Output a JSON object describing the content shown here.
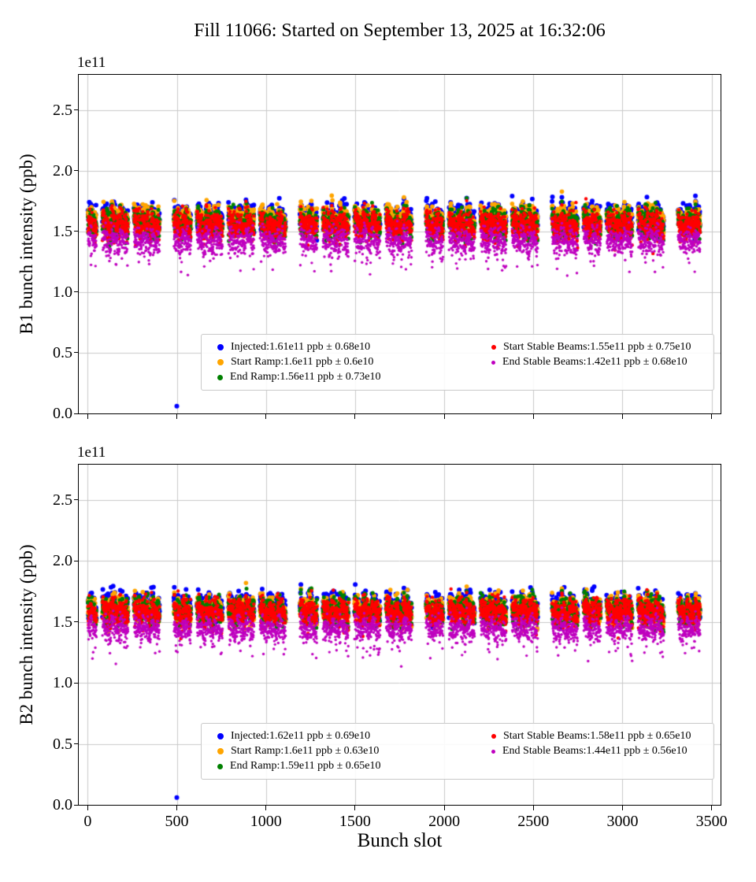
{
  "title": "Fill 11066: Started on September 13, 2025 at 16:32:06",
  "xlabel": "Bunch slot",
  "chart_data": [
    {
      "type": "scatter",
      "beam": "B1",
      "ylabel": "B1 bunch intensity (ppb)",
      "xlabel": "",
      "offset_label": "1e11",
      "grid": true,
      "legend_position": "lower center",
      "xlim": [
        -50,
        3550
      ],
      "ylim_e11": [
        0,
        2.79
      ],
      "xtick_values": [
        0,
        500,
        1000,
        1500,
        2000,
        2500,
        3000,
        3500
      ],
      "xtick_labels": [
        "0",
        "500",
        "1000",
        "1500",
        "2000",
        "2500",
        "3000",
        "3500"
      ],
      "ytick_values": [
        0,
        0.5,
        1.0,
        1.5,
        2.0,
        2.5
      ],
      "ytick_labels": [
        "0.0",
        "0.5",
        "1.0",
        "1.5",
        "2.0",
        "2.5"
      ],
      "series": [
        {
          "name": "Injected",
          "label": "Injected:1.61e11 ppb ± 0.68e10",
          "color": "#0000ff",
          "mean_e11": 1.61,
          "std_e10": 0.68,
          "marker_px": 3.0
        },
        {
          "name": "Start Ramp",
          "label": "Start Ramp:1.6e11 ppb ± 0.6e10",
          "color": "#ffa500",
          "mean_e11": 1.6,
          "std_e10": 0.6,
          "marker_px": 2.8
        },
        {
          "name": "End Ramp",
          "label": "End Ramp:1.56e11 ppb ± 0.73e10",
          "color": "#008000",
          "mean_e11": 1.56,
          "std_e10": 0.73,
          "marker_px": 2.5
        },
        {
          "name": "Start Stable Beams",
          "label": "Start Stable Beams:1.55e11 ppb ± 0.75e10",
          "color": "#ff0000",
          "mean_e11": 1.55,
          "std_e10": 0.75,
          "marker_px": 2.2
        },
        {
          "name": "End Stable Beams",
          "label": "End Stable Beams:1.42e11 ppb ± 0.68e10",
          "color": "#bf00bf",
          "mean_e11": 1.42,
          "std_e10": 0.68,
          "marker_px": 1.7
        }
      ],
      "outlier": {
        "x": 500,
        "y_e11": 0.06
      }
    },
    {
      "type": "scatter",
      "beam": "B2",
      "ylabel": "B2 bunch intensity (ppb)",
      "xlabel": "Bunch slot",
      "offset_label": "1e11",
      "grid": true,
      "legend_position": "lower center",
      "xlim": [
        -50,
        3550
      ],
      "ylim_e11": [
        0,
        2.79
      ],
      "xtick_values": [
        0,
        500,
        1000,
        1500,
        2000,
        2500,
        3000,
        3500
      ],
      "xtick_labels": [
        "0",
        "500",
        "1000",
        "1500",
        "2000",
        "2500",
        "3000",
        "3500"
      ],
      "ytick_values": [
        0,
        0.5,
        1.0,
        1.5,
        2.0,
        2.5
      ],
      "ytick_labels": [
        "0.0",
        "0.5",
        "1.0",
        "1.5",
        "2.0",
        "2.5"
      ],
      "series": [
        {
          "name": "Injected",
          "label": "Injected:1.62e11 ppb ± 0.69e10",
          "color": "#0000ff",
          "mean_e11": 1.62,
          "std_e10": 0.69,
          "marker_px": 3.0
        },
        {
          "name": "Start Ramp",
          "label": "Start Ramp:1.6e11 ppb ± 0.63e10",
          "color": "#ffa500",
          "mean_e11": 1.6,
          "std_e10": 0.63,
          "marker_px": 2.8
        },
        {
          "name": "End Ramp",
          "label": "End Ramp:1.59e11 ppb ± 0.65e10",
          "color": "#008000",
          "mean_e11": 1.59,
          "std_e10": 0.65,
          "marker_px": 2.5
        },
        {
          "name": "Start Stable Beams",
          "label": "Start Stable Beams:1.58e11 ppb ± 0.65e10",
          "color": "#ff0000",
          "mean_e11": 1.58,
          "std_e10": 0.65,
          "marker_px": 2.2
        },
        {
          "name": "End Stable Beams",
          "label": "End Stable Beams:1.44e11 ppb ± 0.56e10",
          "color": "#bf00bf",
          "mean_e11": 1.44,
          "std_e10": 0.56,
          "marker_px": 1.7
        }
      ],
      "outlier": {
        "x": 500,
        "y_e11": 0.06
      }
    }
  ]
}
